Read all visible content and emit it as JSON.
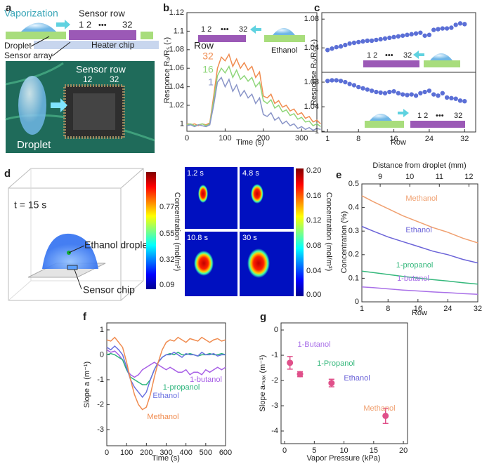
{
  "panel_labels": [
    "a",
    "b",
    "c",
    "d",
    "e",
    "f",
    "g"
  ],
  "panel_a": {
    "vaporization": "Vaporization",
    "sensor_row": "Sensor row",
    "row_start": "1 2",
    "row_dots": "•••",
    "row_end": "32",
    "droplet": "Droplet",
    "sensor_array": "Sensor array",
    "heater_chip": "Heater chip",
    "photo_sensor_row": "Sensor row",
    "photo_row_start": "12",
    "photo_row_end": "32",
    "photo_droplet": "Droplet"
  },
  "panel_d": {
    "time": "t = 15 s",
    "ethanol_droplet": "Ethanol droplet",
    "sensor_chip": "Sensor chip",
    "colorbar_3d": {
      "label": "Concentration (mol/m³)",
      "ticks": [
        "0.77",
        "0.55",
        "0.32",
        "0.09"
      ]
    },
    "snapshots": [
      "1.2 s",
      "4.8 s",
      "10.8 s",
      "30 s"
    ],
    "colorbar_2d": {
      "label": "Concentration (mol/m³)",
      "ticks": [
        "0.20",
        "0.16",
        "0.12",
        "0.08",
        "0.04",
        "0.00"
      ]
    }
  },
  "chart_data": [
    {
      "type": "line",
      "xlabel": "Time (s)",
      "ylabel": "Responce R₀/Rₛ (-)",
      "x": [
        0,
        10,
        20,
        30,
        40,
        50,
        60,
        70,
        80,
        90,
        100,
        110,
        120,
        130,
        140,
        150,
        160,
        170,
        180,
        190,
        200,
        210,
        220,
        230,
        240,
        250,
        260,
        270,
        280,
        290,
        300,
        310,
        320,
        330,
        340,
        350
      ],
      "xlim": [
        0,
        340
      ],
      "xticks": [
        0,
        100,
        200,
        300
      ],
      "ylim": [
        0.992,
        1.12
      ],
      "yticks": [
        1,
        1.02,
        1.04,
        1.06,
        1.08,
        1.1,
        1.12
      ],
      "legend_title": "Row",
      "series": [
        {
          "name": "32",
          "color": "#f08c50",
          "values": [
            1.0,
            0.999,
            1.0,
            0.998,
            1.0,
            0.999,
            1.001,
            1.03,
            1.06,
            1.072,
            1.068,
            1.075,
            1.062,
            1.07,
            1.06,
            1.066,
            1.058,
            1.062,
            1.05,
            1.056,
            1.03,
            1.028,
            1.032,
            1.022,
            1.025,
            1.018,
            1.02,
            1.014,
            1.016,
            1.01,
            1.012,
            1.006,
            1.008,
            1.002,
            1.004,
            1.0
          ]
        },
        {
          "name": "16",
          "color": "#8fd67a",
          "values": [
            0.999,
            1.0,
            0.998,
            0.999,
            1.0,
            0.998,
            1.0,
            1.025,
            1.052,
            1.06,
            1.055,
            1.062,
            1.05,
            1.058,
            1.048,
            1.052,
            1.046,
            1.05,
            1.04,
            1.045,
            1.025,
            1.022,
            1.026,
            1.017,
            1.02,
            1.013,
            1.015,
            1.009,
            1.011,
            1.005,
            1.007,
            1.002,
            1.003,
            0.998,
            1.0,
            0.997
          ]
        },
        {
          "name": "1",
          "color": "#8a95c8",
          "values": [
            0.998,
            0.999,
            0.997,
            0.999,
            0.998,
            0.997,
            0.999,
            1.02,
            1.045,
            1.05,
            1.04,
            1.048,
            1.035,
            1.042,
            1.03,
            1.036,
            1.028,
            1.032,
            1.022,
            1.028,
            1.01,
            1.008,
            1.012,
            1.004,
            1.007,
            1.0,
            1.003,
            0.998,
            1.0,
            0.995,
            0.997,
            0.994,
            0.996,
            0.993,
            0.995,
            0.994
          ]
        }
      ],
      "annotations": [
        "1 2",
        "•••",
        "32",
        "Ethanol"
      ]
    },
    {
      "type": "scatter",
      "ylabel": "Response R₀/Rₛ (-)",
      "x": [
        1,
        2,
        3,
        4,
        5,
        6,
        7,
        8,
        9,
        10,
        11,
        12,
        13,
        14,
        15,
        16,
        17,
        18,
        19,
        20,
        21,
        22,
        23,
        24,
        25,
        26,
        27,
        28,
        29,
        30,
        31,
        32
      ],
      "xlim": [
        -0.3,
        34.5
      ],
      "ylim": [
        1.006,
        1.089
      ],
      "yticks": [
        1.04,
        1.08
      ],
      "color": "#5b6fd6",
      "values": [
        1.037,
        1.039,
        1.041,
        1.042,
        1.044,
        1.046,
        1.047,
        1.048,
        1.049,
        1.05,
        1.05,
        1.051,
        1.052,
        1.053,
        1.054,
        1.055,
        1.056,
        1.057,
        1.058,
        1.059,
        1.06,
        1.061,
        1.057,
        1.058,
        1.065,
        1.066,
        1.067,
        1.067,
        1.068,
        1.072,
        1.074,
        1.073
      ],
      "annotations": [
        "1 2",
        "•••",
        "32"
      ]
    },
    {
      "type": "scatter",
      "xlabel": "Row",
      "x": [
        1,
        2,
        3,
        4,
        5,
        6,
        7,
        8,
        9,
        10,
        11,
        12,
        13,
        14,
        15,
        16,
        17,
        18,
        19,
        20,
        21,
        22,
        23,
        24,
        25,
        26,
        27,
        28,
        29,
        30,
        31,
        32
      ],
      "xlim": [
        -0.3,
        34.5
      ],
      "xticks": [
        1,
        8,
        16,
        24,
        32
      ],
      "ylim": [
        0.999,
        1.096
      ],
      "yticks": [
        1,
        1.04,
        1.08
      ],
      "color": "#5b6fd6",
      "values": [
        1.082,
        1.083,
        1.083,
        1.082,
        1.08,
        1.077,
        1.075,
        1.072,
        1.07,
        1.068,
        1.066,
        1.064,
        1.063,
        1.062,
        1.064,
        1.065,
        1.062,
        1.06,
        1.059,
        1.06,
        1.058,
        1.062,
        1.064,
        1.066,
        1.06,
        1.058,
        1.062,
        1.055,
        1.054,
        1.053,
        1.05,
        1.049
      ],
      "annotations": [
        "1 2",
        "•••",
        "32"
      ]
    },
    {
      "type": "line",
      "xlabel": "Row",
      "ylabel": "Concentration (%)",
      "x2label": "Distance from droplet (mm)",
      "x": [
        1,
        4,
        8,
        12,
        16,
        20,
        24,
        28,
        32
      ],
      "xlim": [
        1,
        32
      ],
      "xticks": [
        1,
        8,
        16,
        24,
        32
      ],
      "x2lim": [
        8.38,
        12.3
      ],
      "x2ticks": [
        9,
        10,
        11,
        12
      ],
      "ylim": [
        0,
        0.5
      ],
      "yticks": [
        0,
        0.1,
        0.2,
        0.3,
        0.4,
        0.5
      ],
      "series": [
        {
          "name": "Methanol",
          "color": "#f0a070",
          "values": [
            0.45,
            0.425,
            0.395,
            0.365,
            0.34,
            0.315,
            0.295,
            0.27,
            0.25
          ]
        },
        {
          "name": "Ethanol",
          "color": "#6b63d8",
          "values": [
            0.32,
            0.3,
            0.275,
            0.255,
            0.235,
            0.215,
            0.2,
            0.18,
            0.165
          ]
        },
        {
          "name": "1-propanol",
          "color": "#35b87c",
          "values": [
            0.13,
            0.124,
            0.116,
            0.108,
            0.101,
            0.094,
            0.088,
            0.081,
            0.075
          ]
        },
        {
          "name": "1-butanol",
          "color": "#a970e8",
          "values": [
            0.063,
            0.06,
            0.055,
            0.05,
            0.046,
            0.042,
            0.039,
            0.035,
            0.032
          ]
        }
      ]
    },
    {
      "type": "line",
      "xlabel": "Time (s)",
      "ylabel": "Slope a (m⁻¹)",
      "x": [
        0,
        20,
        40,
        60,
        80,
        100,
        120,
        140,
        160,
        180,
        200,
        220,
        240,
        260,
        280,
        300,
        320,
        340,
        360,
        380,
        400,
        420,
        440,
        460,
        480,
        500,
        520,
        540,
        560,
        580,
        600
      ],
      "xlim": [
        0,
        600
      ],
      "xticks": [
        0,
        100,
        200,
        300,
        400,
        500,
        600
      ],
      "ylim": [
        -3.65,
        1.28
      ],
      "yticks": [
        -3,
        -2,
        -1,
        0,
        1
      ],
      "series": [
        {
          "name": "1-butanol",
          "color": "#a860e6",
          "values": [
            0.2,
            0.1,
            0.15,
            0.0,
            -0.2,
            -0.6,
            -0.8,
            -0.9,
            -0.8,
            -0.6,
            -0.5,
            -0.4,
            -0.3,
            -0.4,
            -0.5,
            -0.6,
            -0.5,
            -0.6,
            -0.7,
            -0.7,
            -0.6,
            -0.8,
            -0.7,
            -0.7,
            -0.8,
            -0.6,
            -0.7,
            -0.6,
            -0.5,
            -0.6,
            -0.5
          ]
        },
        {
          "name": "1-propanol",
          "color": "#2cb47c",
          "values": [
            0.0,
            0.05,
            0.0,
            -0.1,
            -0.2,
            -0.6,
            -0.9,
            -1.0,
            -1.1,
            -1.2,
            -1.2,
            -1.0,
            -0.6,
            -0.3,
            -0.1,
            0.0,
            0.05,
            0.0,
            0.1,
            0.0,
            0.0,
            0.05,
            0.0,
            -0.05,
            0.0,
            0.0,
            0.05,
            0.0,
            0.0,
            0.05,
            0.0
          ]
        },
        {
          "name": "Ethanol",
          "color": "#6a70e0",
          "values": [
            0.3,
            0.2,
            0.35,
            0.2,
            0.0,
            -0.5,
            -1.0,
            -1.3,
            -1.5,
            -1.7,
            -1.5,
            -1.0,
            -0.6,
            -0.3,
            -0.1,
            0.0,
            0.0,
            0.1,
            0.0,
            -0.1,
            0.05,
            0.0,
            0.0,
            -0.05,
            0.1,
            0.0,
            0.0,
            0.05,
            -0.05,
            0.0,
            0.0
          ]
        },
        {
          "name": "Methanol",
          "color": "#f08c50",
          "values": [
            0.6,
            0.55,
            0.7,
            0.5,
            0.3,
            -0.3,
            -1.0,
            -1.6,
            -2.0,
            -2.2,
            -2.1,
            -1.6,
            -0.9,
            -0.3,
            0.2,
            0.5,
            0.6,
            0.55,
            0.7,
            0.6,
            0.5,
            0.65,
            0.6,
            0.55,
            0.7,
            0.6,
            0.5,
            0.6,
            0.65,
            0.55,
            0.6
          ]
        }
      ]
    },
    {
      "type": "errorbar",
      "xlabel": "Vapor Pressure (kPa)",
      "ylabel": "Slope aₘₐₓ (m⁻¹)",
      "x": [
        0.9,
        2.6,
        7.9,
        17.0
      ],
      "values": [
        -1.3,
        -1.75,
        -2.1,
        -3.4
      ],
      "errors": [
        0.25,
        0.1,
        0.15,
        0.3
      ],
      "color": "#e0508a",
      "point_labels": [
        "1-Butanol",
        "1-Propanol",
        "Ethanol",
        "Methanol"
      ],
      "label_colors": [
        "#a970e8",
        "#35b87c",
        "#6b63d8",
        "#f0a070"
      ],
      "xlim": [
        -0.6,
        20.7
      ],
      "xticks": [
        0,
        5,
        10,
        15,
        20
      ],
      "ylim": [
        -4.5,
        0.28
      ],
      "yticks": [
        -4,
        -3,
        -2,
        -1,
        0
      ]
    }
  ]
}
